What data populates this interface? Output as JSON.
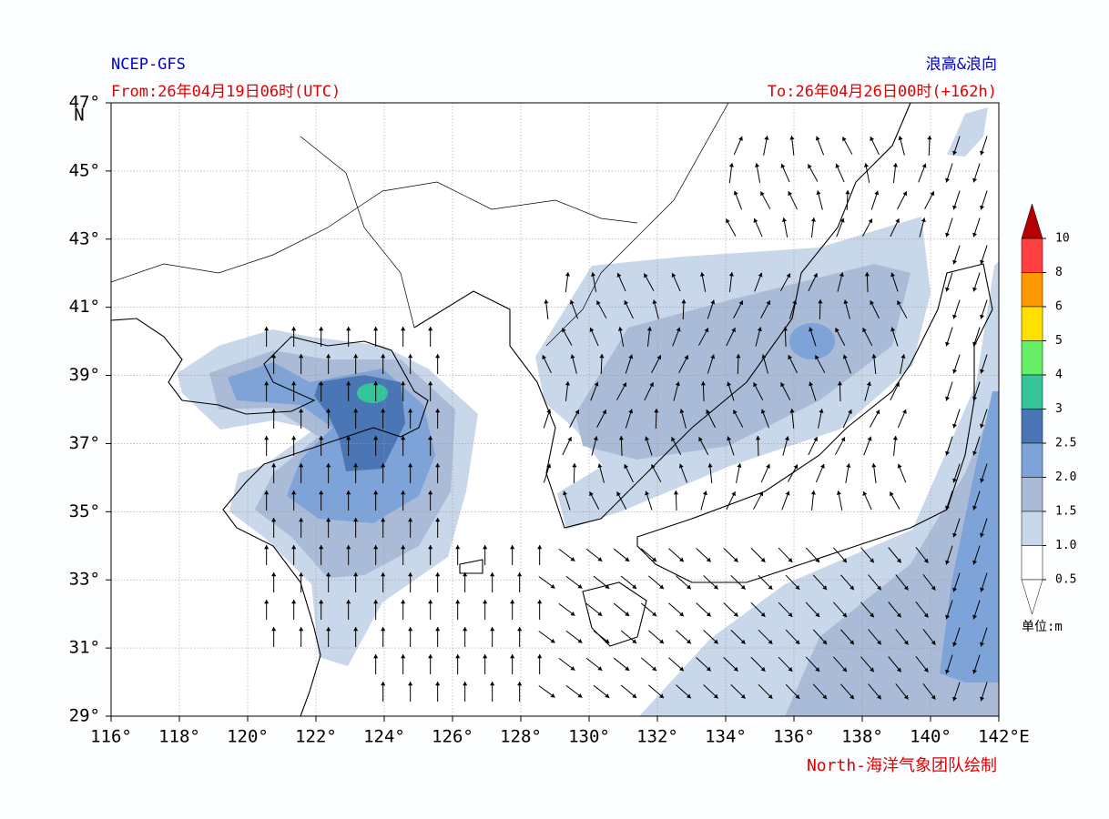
{
  "header": {
    "source": "NCEP-GFS",
    "product": "浪高&浪向",
    "from": "From:26年04月19日06时(UTC)",
    "to": "To:26年04月26日00时(+162h)"
  },
  "axes": {
    "lat_ticks": [
      "29°",
      "31°",
      "33°",
      "35°",
      "37°",
      "39°",
      "41°",
      "43°",
      "45°",
      "47°"
    ],
    "lat_unit": "N",
    "lon_ticks": [
      "116°",
      "118°",
      "120°",
      "122°",
      "124°",
      "126°",
      "128°",
      "130°",
      "132°",
      "134°",
      "136°",
      "138°",
      "140°",
      "142°"
    ],
    "lon_unit": "E"
  },
  "colorbar": {
    "labels": [
      "10",
      "8",
      "6",
      "5",
      "4",
      "3",
      "2.5",
      "2.0",
      "1.5",
      "1.0",
      "0.5"
    ],
    "colors": [
      "#ff4040",
      "#ff9900",
      "#ffe000",
      "#66ee66",
      "#35c49a",
      "#4b76b5",
      "#7da3d8",
      "#aabbd8",
      "#c9d7ea",
      "#ffffff"
    ],
    "over_color": "#b40000",
    "unit": "单位:m"
  },
  "credit": "North-海洋气象团队绘制"
}
